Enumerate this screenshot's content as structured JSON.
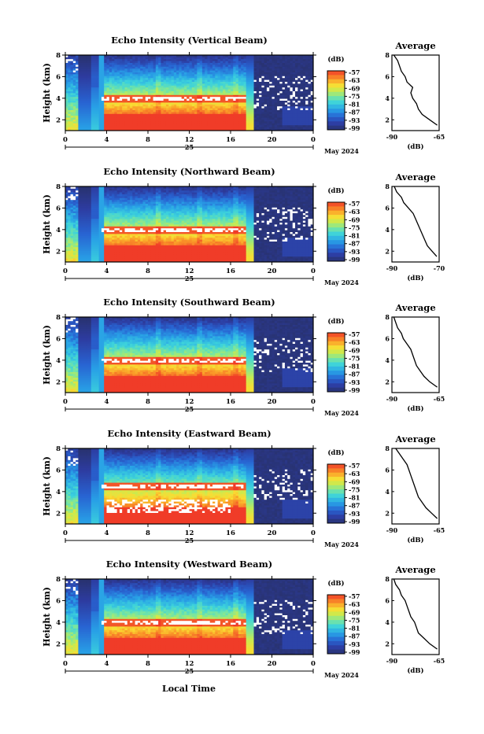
{
  "figure": {
    "xlabel": "Local Time",
    "date_label": "May 2024",
    "day_label": "25",
    "colorbar_unit": "(dB)",
    "colorbar_ticks": [
      "-57",
      "-63",
      "-69",
      "-75",
      "-81",
      "-87",
      "-93",
      "-99"
    ],
    "avg_title": "Average",
    "avg_xlabel": "(dB)"
  },
  "chart_data": [
    {
      "type": "heatmap",
      "title": "Echo Intensity (Vertical Beam)",
      "ylabel": "Height (km)",
      "xlabel": "Local Time",
      "x_ticks": [
        "0",
        "4",
        "8",
        "12",
        "16",
        "20",
        "0"
      ],
      "y_ticks": [
        "2",
        "4",
        "6",
        "8"
      ],
      "xlim": [
        0,
        24
      ],
      "ylim": [
        1,
        8
      ],
      "colorbar": {
        "unit": "(dB)",
        "range": [
          -99,
          -57
        ]
      },
      "white_band_height_km": 4.0,
      "average_profile": {
        "title": "Average",
        "xlabel": "(dB)",
        "xlim": [
          -90,
          -65
        ],
        "x_ticks": [
          "-90",
          "-65"
        ],
        "y_ticks": [
          "2",
          "4",
          "6",
          "8"
        ],
        "height": [
          1.5,
          2,
          2.5,
          3,
          3.5,
          4,
          4.5,
          5,
          5.5,
          6,
          6.5,
          7,
          7.5,
          8
        ],
        "value": [
          -66,
          -70,
          -74,
          -76,
          -77,
          -79,
          -80,
          -79,
          -82,
          -83,
          -85,
          -86,
          -87,
          -89
        ]
      }
    },
    {
      "type": "heatmap",
      "title": "Echo Intensity (Northward Beam)",
      "ylabel": "Height (km)",
      "xlabel": "Local Time",
      "x_ticks": [
        "0",
        "4",
        "8",
        "12",
        "16",
        "20",
        "0"
      ],
      "y_ticks": [
        "2",
        "4",
        "6",
        "8"
      ],
      "xlim": [
        0,
        24
      ],
      "ylim": [
        1,
        8
      ],
      "colorbar": {
        "unit": "(dB)",
        "range": [
          -99,
          -57
        ]
      },
      "white_band_height_km": 4.0,
      "average_profile": {
        "title": "Average",
        "xlabel": "(dB)",
        "xlim": [
          -90,
          -70
        ],
        "x_ticks": [
          "-90",
          "-70"
        ],
        "y_ticks": [
          "2",
          "4",
          "6",
          "8"
        ],
        "height": [
          1.5,
          2,
          2.5,
          3,
          3.5,
          4,
          4.5,
          5,
          5.5,
          6,
          6.5,
          7,
          7.5,
          8
        ],
        "value": [
          -71,
          -73,
          -75,
          -76,
          -77,
          -78,
          -79,
          -80,
          -81,
          -83,
          -85,
          -86,
          -88,
          -89
        ]
      }
    },
    {
      "type": "heatmap",
      "title": "Echo Intensity (Southward Beam)",
      "ylabel": "Height (km)",
      "xlabel": "Local Time",
      "x_ticks": [
        "0",
        "4",
        "8",
        "12",
        "16",
        "20",
        "0"
      ],
      "y_ticks": [
        "2",
        "4",
        "6",
        "8"
      ],
      "xlim": [
        0,
        24
      ],
      "ylim": [
        1,
        8
      ],
      "colorbar": {
        "unit": "(dB)",
        "range": [
          -99,
          -57
        ]
      },
      "white_band_height_km": 4.0,
      "average_profile": {
        "title": "Average",
        "xlabel": "(dB)",
        "xlim": [
          -90,
          -65
        ],
        "x_ticks": [
          "-90",
          "-65"
        ],
        "y_ticks": [
          "2",
          "4",
          "6",
          "8"
        ],
        "height": [
          1.5,
          2,
          2.5,
          3,
          3.5,
          4,
          4.5,
          5,
          5.5,
          6,
          6.5,
          7,
          7.5,
          8
        ],
        "value": [
          -66,
          -70,
          -73,
          -75,
          -77,
          -78,
          -79,
          -80,
          -82,
          -84,
          -85,
          -87,
          -88,
          -89
        ]
      }
    },
    {
      "type": "heatmap",
      "title": "Echo Intensity (Eastward Beam)",
      "ylabel": "Height (km)",
      "xlabel": "Local Time",
      "x_ticks": [
        "0",
        "4",
        "8",
        "12",
        "16",
        "20",
        "0"
      ],
      "y_ticks": [
        "2",
        "4",
        "6",
        "8"
      ],
      "xlim": [
        0,
        24
      ],
      "ylim": [
        1,
        8
      ],
      "colorbar": {
        "unit": "(dB)",
        "range": [
          -99,
          -57
        ]
      },
      "white_band_height_km": 4.5,
      "average_profile": {
        "title": "Average",
        "xlabel": "(dB)",
        "xlim": [
          -90,
          -65
        ],
        "x_ticks": [
          "-90",
          "-65"
        ],
        "y_ticks": [
          "2",
          "4",
          "6",
          "8"
        ],
        "height": [
          1.5,
          2,
          2.5,
          3,
          3.5,
          4,
          4.5,
          5,
          5.5,
          6,
          6.5,
          7,
          7.5,
          8
        ],
        "value": [
          -66,
          -69,
          -72,
          -74,
          -76,
          -77,
          -78,
          -79,
          -80,
          -81,
          -82,
          -84,
          -86,
          -88
        ]
      }
    },
    {
      "type": "heatmap",
      "title": "Echo Intensity (Westward Beam)",
      "ylabel": "Height (km)",
      "xlabel": "Local Time",
      "x_ticks": [
        "0",
        "4",
        "8",
        "12",
        "16",
        "20",
        "0"
      ],
      "y_ticks": [
        "2",
        "4",
        "6",
        "8"
      ],
      "xlim": [
        0,
        24
      ],
      "ylim": [
        1,
        8
      ],
      "colorbar": {
        "unit": "(dB)",
        "range": [
          -99,
          -57
        ]
      },
      "white_band_height_km": 4.0,
      "average_profile": {
        "title": "Average",
        "xlabel": "(dB)",
        "xlim": [
          -90,
          -65
        ],
        "x_ticks": [
          "-90",
          "-65"
        ],
        "y_ticks": [
          "2",
          "4",
          "6",
          "8"
        ],
        "height": [
          1.5,
          2,
          2.5,
          3,
          3.5,
          4,
          4.5,
          5,
          5.5,
          6,
          6.5,
          7,
          7.5,
          8
        ],
        "value": [
          -66,
          -70,
          -73,
          -76,
          -77,
          -78,
          -80,
          -81,
          -82,
          -83,
          -85,
          -86,
          -88,
          -89
        ]
      }
    }
  ]
}
